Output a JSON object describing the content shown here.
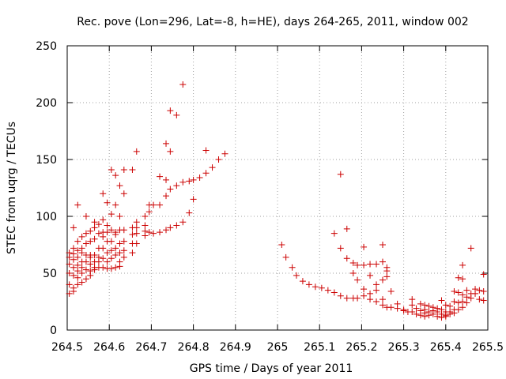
{
  "chart_data": {
    "type": "scatter",
    "title": "Rec. pove (Lon=296, Lat=-8, h=HE), days 264-265, 2011, window 002",
    "xlabel": "GPS time / Days of year 2011",
    "ylabel": "STEC from uqrg / TECUs",
    "xlim": [
      264.5,
      265.5
    ],
    "ylim": [
      0,
      250
    ],
    "xticks": [
      "264.5",
      "264.6",
      "264.7",
      "264.8",
      "264.9",
      "265",
      "265.1",
      "265.2",
      "265.3",
      "265.4",
      "265.5"
    ],
    "yticks": [
      "0",
      "50",
      "100",
      "150",
      "200",
      "250"
    ],
    "grid": true,
    "marker": "plus",
    "color": "#cc0000",
    "series": [
      {
        "points": [
          [
            264.505,
            68
          ],
          [
            264.505,
            64
          ],
          [
            264.505,
            58
          ],
          [
            264.505,
            50
          ],
          [
            264.505,
            40
          ],
          [
            264.505,
            32
          ],
          [
            264.515,
            90
          ],
          [
            264.515,
            72
          ],
          [
            264.515,
            67
          ],
          [
            264.515,
            62
          ],
          [
            264.515,
            55
          ],
          [
            264.515,
            48
          ],
          [
            264.515,
            37
          ],
          [
            264.515,
            34
          ],
          [
            264.525,
            110
          ],
          [
            264.525,
            78
          ],
          [
            264.525,
            70
          ],
          [
            264.525,
            64
          ],
          [
            264.525,
            57
          ],
          [
            264.525,
            52
          ],
          [
            264.525,
            46
          ],
          [
            264.525,
            40
          ],
          [
            264.535,
            82
          ],
          [
            264.535,
            72
          ],
          [
            264.535,
            68
          ],
          [
            264.535,
            60
          ],
          [
            264.535,
            55
          ],
          [
            264.535,
            50
          ],
          [
            264.535,
            42
          ],
          [
            264.545,
            100
          ],
          [
            264.545,
            85
          ],
          [
            264.545,
            76
          ],
          [
            264.545,
            66
          ],
          [
            264.545,
            60
          ],
          [
            264.545,
            53
          ],
          [
            264.545,
            45
          ],
          [
            264.555,
            87
          ],
          [
            264.555,
            78
          ],
          [
            264.555,
            66
          ],
          [
            264.555,
            64
          ],
          [
            264.555,
            58
          ],
          [
            264.555,
            52
          ],
          [
            264.555,
            48
          ],
          [
            264.565,
            95
          ],
          [
            264.565,
            90
          ],
          [
            264.565,
            80
          ],
          [
            264.565,
            66
          ],
          [
            264.565,
            60
          ],
          [
            264.565,
            55
          ],
          [
            264.565,
            53
          ],
          [
            264.575,
            93
          ],
          [
            264.575,
            85
          ],
          [
            264.575,
            72
          ],
          [
            264.575,
            64
          ],
          [
            264.575,
            60
          ],
          [
            264.575,
            55
          ],
          [
            264.585,
            120
          ],
          [
            264.585,
            97
          ],
          [
            264.585,
            86
          ],
          [
            264.585,
            82
          ],
          [
            264.585,
            72
          ],
          [
            264.585,
            63
          ],
          [
            264.585,
            55
          ],
          [
            264.595,
            112
          ],
          [
            264.595,
            92
          ],
          [
            264.595,
            86
          ],
          [
            264.595,
            78
          ],
          [
            264.595,
            68
          ],
          [
            264.595,
            60
          ],
          [
            264.595,
            54
          ],
          [
            264.605,
            141
          ],
          [
            264.605,
            102
          ],
          [
            264.605,
            88
          ],
          [
            264.605,
            78
          ],
          [
            264.605,
            70
          ],
          [
            264.605,
            63
          ],
          [
            264.605,
            54
          ],
          [
            264.615,
            136
          ],
          [
            264.615,
            110
          ],
          [
            264.615,
            86
          ],
          [
            264.615,
            84
          ],
          [
            264.615,
            72
          ],
          [
            264.615,
            66
          ],
          [
            264.615,
            55
          ],
          [
            264.625,
            127
          ],
          [
            264.625,
            100
          ],
          [
            264.625,
            88
          ],
          [
            264.625,
            76
          ],
          [
            264.625,
            68
          ],
          [
            264.625,
            60
          ],
          [
            264.625,
            56
          ],
          [
            264.635,
            141
          ],
          [
            264.635,
            120
          ],
          [
            264.635,
            88
          ],
          [
            264.635,
            78
          ],
          [
            264.635,
            70
          ],
          [
            264.635,
            64
          ],
          [
            264.655,
            141
          ],
          [
            264.655,
            90
          ],
          [
            264.655,
            84
          ],
          [
            264.655,
            76
          ],
          [
            264.655,
            68
          ],
          [
            264.665,
            157
          ],
          [
            264.665,
            95
          ],
          [
            264.665,
            90
          ],
          [
            264.665,
            85
          ],
          [
            264.665,
            76
          ],
          [
            264.685,
            100
          ],
          [
            264.685,
            92
          ],
          [
            264.685,
            87
          ],
          [
            264.685,
            83
          ],
          [
            264.695,
            110
          ],
          [
            264.695,
            104
          ],
          [
            264.695,
            86
          ],
          [
            264.705,
            110
          ],
          [
            264.705,
            85
          ],
          [
            264.72,
            135
          ],
          [
            264.72,
            110
          ],
          [
            264.72,
            86
          ],
          [
            264.735,
            164
          ],
          [
            264.735,
            132
          ],
          [
            264.735,
            118
          ],
          [
            264.735,
            88
          ],
          [
            264.745,
            193
          ],
          [
            264.745,
            157
          ],
          [
            264.745,
            124
          ],
          [
            264.745,
            90
          ],
          [
            264.76,
            189
          ],
          [
            264.76,
            127
          ],
          [
            264.76,
            92
          ],
          [
            264.775,
            216
          ],
          [
            264.775,
            130
          ],
          [
            264.775,
            95
          ],
          [
            264.79,
            131
          ],
          [
            264.79,
            103
          ],
          [
            264.8,
            132
          ],
          [
            264.8,
            115
          ],
          [
            264.815,
            134
          ],
          [
            264.83,
            158
          ],
          [
            264.83,
            138
          ],
          [
            264.845,
            143
          ],
          [
            264.86,
            150
          ],
          [
            264.875,
            155
          ],
          [
            265.01,
            75
          ],
          [
            265.02,
            64
          ],
          [
            265.035,
            55
          ],
          [
            265.045,
            48
          ],
          [
            265.06,
            43
          ],
          [
            265.075,
            40
          ],
          [
            265.09,
            38
          ],
          [
            265.105,
            37
          ],
          [
            265.12,
            35
          ],
          [
            265.135,
            33
          ],
          [
            265.135,
            85
          ],
          [
            265.15,
            137
          ],
          [
            265.15,
            72
          ],
          [
            265.15,
            30
          ],
          [
            265.165,
            89
          ],
          [
            265.165,
            63
          ],
          [
            265.165,
            28
          ],
          [
            265.18,
            59
          ],
          [
            265.18,
            50
          ],
          [
            265.18,
            28
          ],
          [
            265.19,
            57
          ],
          [
            265.19,
            44
          ],
          [
            265.19,
            28
          ],
          [
            265.205,
            73
          ],
          [
            265.205,
            57
          ],
          [
            265.205,
            36
          ],
          [
            265.205,
            30
          ],
          [
            265.22,
            58
          ],
          [
            265.22,
            48
          ],
          [
            265.22,
            32
          ],
          [
            265.22,
            27
          ],
          [
            265.235,
            58
          ],
          [
            265.235,
            40
          ],
          [
            265.235,
            35
          ],
          [
            265.235,
            25
          ],
          [
            265.25,
            75
          ],
          [
            265.25,
            60
          ],
          [
            265.25,
            44
          ],
          [
            265.25,
            27
          ],
          [
            265.25,
            22
          ],
          [
            265.26,
            55
          ],
          [
            265.26,
            52
          ],
          [
            265.26,
            47
          ],
          [
            265.26,
            20
          ],
          [
            265.27,
            34
          ],
          [
            265.27,
            20
          ],
          [
            265.285,
            23
          ],
          [
            265.285,
            19
          ],
          [
            265.3,
            18
          ],
          [
            265.3,
            17
          ],
          [
            265.31,
            16
          ],
          [
            265.32,
            27
          ],
          [
            265.32,
            22
          ],
          [
            265.32,
            16
          ],
          [
            265.33,
            19
          ],
          [
            265.33,
            14
          ],
          [
            265.34,
            23
          ],
          [
            265.34,
            17
          ],
          [
            265.34,
            13
          ],
          [
            265.35,
            22
          ],
          [
            265.35,
            18
          ],
          [
            265.35,
            15
          ],
          [
            265.35,
            12
          ],
          [
            265.36,
            21
          ],
          [
            265.36,
            16
          ],
          [
            265.36,
            13
          ],
          [
            265.37,
            20
          ],
          [
            265.37,
            17
          ],
          [
            265.37,
            14
          ],
          [
            265.38,
            19
          ],
          [
            265.38,
            16
          ],
          [
            265.38,
            12
          ],
          [
            265.39,
            26
          ],
          [
            265.39,
            18
          ],
          [
            265.39,
            14
          ],
          [
            265.39,
            11
          ],
          [
            265.4,
            22
          ],
          [
            265.4,
            16
          ],
          [
            265.4,
            13
          ],
          [
            265.4,
            12
          ],
          [
            265.41,
            21
          ],
          [
            265.41,
            16
          ],
          [
            265.41,
            14
          ],
          [
            265.42,
            34
          ],
          [
            265.42,
            25
          ],
          [
            265.42,
            18
          ],
          [
            265.42,
            15
          ],
          [
            265.43,
            46
          ],
          [
            265.43,
            33
          ],
          [
            265.43,
            24
          ],
          [
            265.43,
            18
          ],
          [
            265.44,
            57
          ],
          [
            265.44,
            45
          ],
          [
            265.44,
            31
          ],
          [
            265.44,
            25
          ],
          [
            265.44,
            20
          ],
          [
            265.45,
            35
          ],
          [
            265.45,
            29
          ],
          [
            265.45,
            24
          ],
          [
            265.46,
            72
          ],
          [
            265.46,
            32
          ],
          [
            265.46,
            28
          ],
          [
            265.47,
            36
          ],
          [
            265.47,
            32
          ],
          [
            265.48,
            35
          ],
          [
            265.48,
            27
          ],
          [
            265.49,
            49
          ],
          [
            265.49,
            34
          ],
          [
            265.49,
            26
          ]
        ]
      }
    ]
  }
}
